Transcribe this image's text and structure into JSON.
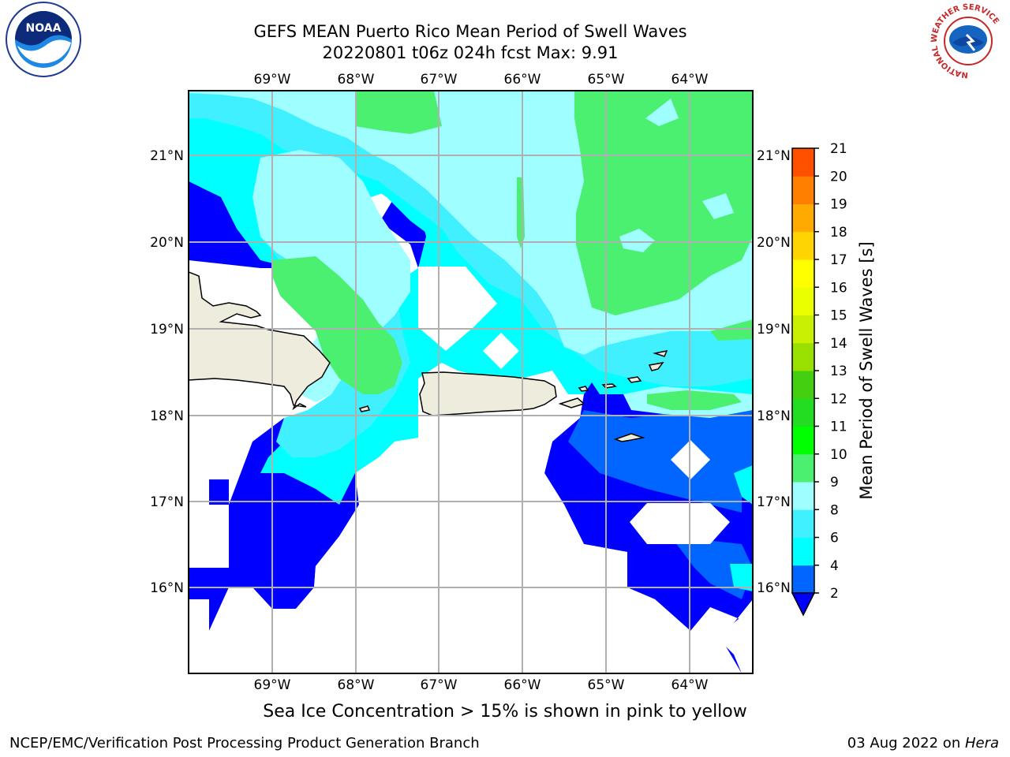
{
  "title": {
    "line1": "GEFS MEAN Puerto Rico Mean Period of Swell Waves",
    "line2": "20220801 t06z 024h fcst   Max: 9.91"
  },
  "map": {
    "lon_labels": [
      "69°W",
      "68°W",
      "67°W",
      "66°W",
      "65°W",
      "64°W"
    ],
    "lat_labels": [
      "21°N",
      "20°N",
      "19°N",
      "18°N",
      "17°N",
      "16°N"
    ],
    "colors": {
      "land": "#eeecdc",
      "band_2_4": "#0000ff",
      "band_4_6": "#00ffff",
      "band_6_8": "#40f0ff",
      "band_8_9": "#9ffeff",
      "band_9_10": "#4cf070",
      "grid": "#b0b0b0"
    }
  },
  "colorbar": {
    "label": "Mean Period of Swell Waves [s]",
    "ticks": [
      "2",
      "4",
      "6",
      "8",
      "9",
      "10",
      "11",
      "12",
      "13",
      "14",
      "15",
      "16",
      "17",
      "18",
      "19",
      "20",
      "21"
    ],
    "colors": [
      "#0066ff",
      "#00ffff",
      "#40f0ff",
      "#9ffeff",
      "#4cf070",
      "#00ff00",
      "#22dd22",
      "#44d010",
      "#99e000",
      "#c8f000",
      "#eaff00",
      "#ffff00",
      "#ffd400",
      "#ffaa00",
      "#ff8000",
      "#ff5000",
      "#ff2000",
      "#ff0000"
    ],
    "extend_color": "#0000ff"
  },
  "caption": "Sea Ice Concentration > 15% is shown in pink to yellow",
  "footer": {
    "left": "NCEP/EMC/Verification Post Processing Product Generation Branch",
    "date": "03 Aug 2022 on ",
    "machine": "Hera"
  },
  "logos": {
    "noaa": "NOAA",
    "nws_ring": "NATIONAL WEATHER SERVICE"
  }
}
